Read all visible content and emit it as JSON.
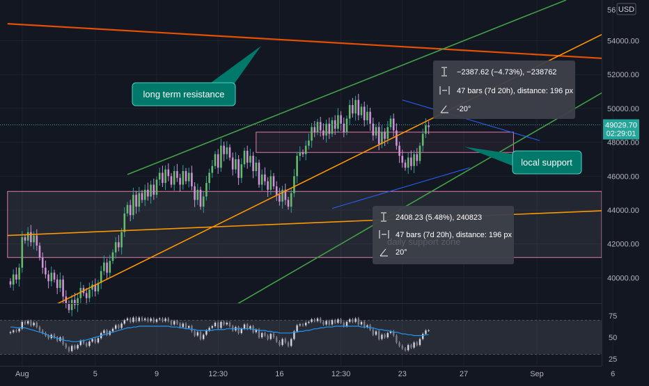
{
  "chart_data": {
    "type": "candlestick",
    "currency_badge": "USD",
    "price_axis": {
      "ylim": [
        38500,
        56400
      ],
      "ticks": [
        40000,
        42000,
        44000,
        46000,
        48000,
        50000,
        52000,
        54000
      ],
      "tick_labels": [
        "40000.00",
        "42000.00",
        "44000.00",
        "46000.00",
        "48000.00",
        "50000.00",
        "52000.00",
        "54000.00"
      ],
      "top_partial_label": "56"
    },
    "time_axis": {
      "tick_labels": [
        "Aug",
        "5",
        "9",
        "12:30",
        "16",
        "12:30",
        "23",
        "27",
        "Sep",
        "6"
      ],
      "tick_bars": [
        4,
        29,
        50,
        71,
        92,
        113,
        134,
        155,
        180,
        206
      ]
    },
    "last_price": {
      "value": 49029.7,
      "label": "49029.70",
      "countdown": "02:29:01",
      "color": "#26a69a"
    },
    "candles_ohlc_start": 39800,
    "candles_close": [
      39600,
      40200,
      39900,
      40600,
      42400,
      42200,
      42700,
      42100,
      42500,
      41900,
      41200,
      40600,
      40200,
      39800,
      40300,
      39900,
      39400,
      39900,
      38900,
      38500,
      38100,
      38700,
      38400,
      38800,
      39400,
      39100,
      38800,
      39300,
      39600,
      39200,
      39700,
      40400,
      40900,
      40300,
      41000,
      41500,
      42100,
      41800,
      42700,
      43800,
      44300,
      43700,
      44900,
      44200,
      45000,
      44600,
      45200,
      44800,
      45500,
      44900,
      45800,
      46200,
      45600,
      46400,
      46000,
      45500,
      46300,
      45900,
      45500,
      46300,
      45700,
      46200,
      45400,
      44600,
      45200,
      44200,
      44800,
      45600,
      46200,
      46600,
      47300,
      46500,
      47800,
      47300,
      47700,
      47100,
      46400,
      47000,
      45900,
      46700,
      47500,
      46800,
      47200,
      46300,
      46800,
      45500,
      46100,
      45700,
      45200,
      46000,
      45400,
      44900,
      44500,
      45200,
      44600,
      44200,
      45000,
      46000,
      47200,
      47400,
      47300,
      47800,
      48100,
      48900,
      48600,
      49200,
      48700,
      48400,
      49100,
      48500,
      49300,
      48800,
      49600,
      49100,
      48600,
      49400,
      50200,
      49700,
      50500,
      49600,
      50100,
      49300,
      49800,
      49100,
      48400,
      48900,
      47900,
      48600,
      48200,
      48900,
      49400,
      48700,
      47800,
      47200,
      46800,
      46500,
      47100,
      46600,
      47300,
      46900,
      47800,
      48500,
      49000,
      48900
    ],
    "rsi": {
      "ylim": [
        20,
        80
      ],
      "levels": [
        25,
        50,
        75
      ],
      "band": [
        30,
        70
      ],
      "candles_close": [
        56,
        58,
        57,
        60,
        68,
        66,
        69,
        64,
        67,
        62,
        58,
        55,
        52,
        49,
        53,
        50,
        46,
        50,
        42,
        38,
        34,
        40,
        37,
        41,
        46,
        43,
        40,
        45,
        48,
        44,
        49,
        55,
        58,
        53,
        57,
        60,
        64,
        61,
        66,
        70,
        72,
        68,
        73,
        69,
        73,
        70,
        72,
        69,
        72,
        68,
        71,
        72,
        69,
        72,
        69,
        65,
        69,
        66,
        62,
        66,
        61,
        63,
        57,
        52,
        56,
        48,
        53,
        58,
        61,
        63,
        67,
        61,
        68,
        65,
        67,
        63,
        58,
        62,
        55,
        60,
        65,
        60,
        63,
        56,
        59,
        50,
        55,
        52,
        48,
        54,
        50,
        45,
        41,
        48,
        44,
        40,
        48,
        57,
        64,
        65,
        64,
        67,
        68,
        71,
        69,
        72,
        68,
        65,
        69,
        65,
        70,
        67,
        71,
        67,
        63,
        68,
        71,
        68,
        72,
        65,
        68,
        62,
        64,
        59,
        53,
        57,
        48,
        53,
        50,
        55,
        57,
        52,
        44,
        40,
        37,
        35,
        41,
        38,
        44,
        41,
        48,
        54,
        58,
        58
      ],
      "sma": [
        62,
        62,
        61,
        61,
        61,
        61,
        60,
        59,
        58,
        57,
        56,
        55,
        54,
        52,
        51,
        50,
        49,
        48,
        47,
        46,
        46,
        45,
        45,
        45,
        46,
        46,
        47,
        48,
        49,
        50,
        51,
        52,
        53,
        54,
        55,
        56,
        57,
        58,
        59,
        60,
        61,
        61,
        62,
        62,
        63,
        63,
        63,
        63,
        63,
        63,
        63,
        63,
        63,
        63,
        63,
        62,
        62,
        62,
        61,
        61,
        60,
        60,
        59,
        59,
        58,
        58,
        58,
        58,
        58,
        58,
        59,
        59,
        59,
        59,
        60,
        60,
        60,
        60,
        60,
        60,
        60,
        60,
        60,
        59,
        59,
        58,
        58,
        58,
        57,
        57,
        56,
        56,
        55,
        55,
        55,
        55,
        55,
        56,
        56,
        57,
        57,
        58,
        58,
        59,
        60,
        60,
        61,
        61,
        62,
        62,
        62,
        63,
        63,
        63,
        63,
        63,
        63,
        63,
        63,
        63,
        62,
        62,
        62,
        61,
        61,
        60,
        59,
        59,
        58,
        58,
        57,
        56,
        56,
        55,
        54,
        54,
        53,
        53,
        52,
        52,
        52,
        52,
        53,
        53
      ],
      "tick_labels": [
        "75",
        "50",
        "25"
      ]
    },
    "trendlines": [
      {
        "name": "long term resistance",
        "color": "#e65100",
        "from": [
          -1,
          55000
        ],
        "to": [
          208,
          52900
        ]
      },
      {
        "name": "orange-rising-trend",
        "color": "#ff9800",
        "from": [
          0,
          37100
        ],
        "to": [
          205,
          54600
        ]
      },
      {
        "name": "orange-lower-trend",
        "color": "#ff9800",
        "from": [
          -1,
          42500
        ],
        "to": [
          208,
          44000
        ]
      },
      {
        "name": "green-channel-upper",
        "color": "#43a047",
        "from": [
          40,
          46100
        ],
        "to": [
          190,
          56400
        ]
      },
      {
        "name": "green-channel-lower",
        "color": "#43a047",
        "from": [
          40,
          34700
        ],
        "to": [
          205,
          51200
        ]
      },
      {
        "name": "blue-measure-up",
        "color": "#2962ff",
        "from": [
          110,
          44100
        ],
        "to": [
          157,
          46500
        ]
      },
      {
        "name": "blue-measure-down",
        "color": "#2962ff",
        "from": [
          134,
          50500
        ],
        "to": [
          181,
          48100
        ]
      }
    ],
    "zones": [
      {
        "name": "daily support zone",
        "label": "daily support zone",
        "from_bar": -1,
        "to_bar": 208,
        "low": 41200,
        "high": 45100,
        "border": "#e17ca8",
        "fill": "rgba(255,255,255,0.07)"
      },
      {
        "name": "local range box",
        "from_bar": 84,
        "to_bar": 172,
        "low": 47400,
        "high": 48600,
        "border": "#e17ca8",
        "fill": "rgba(225,124,168,0.07)"
      }
    ],
    "measurements": [
      {
        "name": "measure-down",
        "line1": "−2387.62 (−4.73%), −238762",
        "line2": "47 bars (7d 20h), distance: 196 px",
        "line3": "-20°"
      },
      {
        "name": "measure-up",
        "line1": "2408.23 (5.48%), 240823",
        "line2": "47 bars (7d 20h), distance: 196 px",
        "line3": "20°"
      }
    ],
    "callouts": [
      {
        "name": "long-term-resistance",
        "text": "long term resistance"
      },
      {
        "name": "local-support",
        "text": "local support"
      }
    ],
    "colors": {
      "up": "#26a69a",
      "down": "#ce93d8",
      "up_body": "#66bb6a"
    }
  }
}
